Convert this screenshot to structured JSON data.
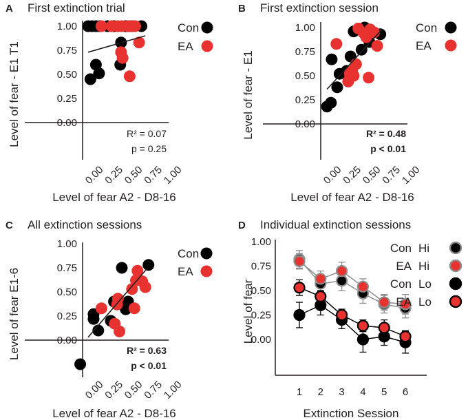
{
  "colors": {
    "con": "#000000",
    "ea": "#e8322f",
    "hi_outline": "#8c8c8c",
    "axis": "#231f20"
  },
  "chart_data": [
    {
      "panel": "A",
      "type": "scatter",
      "title": "First extinction trial",
      "xlabel": "Level of fear A2 - D8-16",
      "ylabel": "Level of fear - E1 T1",
      "xlim": [
        0,
        1
      ],
      "ylim": [
        -0.35,
        1.05
      ],
      "xticks": [
        "0.00",
        "0.25",
        "0.50",
        "0.75",
        "1.00"
      ],
      "yticks": [
        "0.00",
        "0.25",
        "0.50",
        "0.75",
        "1.00"
      ],
      "legend": [
        {
          "label": "Con",
          "series": "Con"
        },
        {
          "label": "EA",
          "series": "EA"
        }
      ],
      "stats": [
        "R² = 0.07",
        "p = 0.25"
      ],
      "stats_bold": false,
      "fit": {
        "x": [
          0.07,
          0.8
        ],
        "y": [
          0.73,
          0.9
        ]
      },
      "series": [
        {
          "name": "Con",
          "points": [
            [
              0.07,
              1.0
            ],
            [
              0.12,
              1.0
            ],
            [
              0.17,
              1.0
            ],
            [
              0.22,
              1.0
            ],
            [
              0.32,
              1.0
            ],
            [
              0.4,
              1.0
            ],
            [
              0.55,
              1.0
            ],
            [
              0.58,
              1.0
            ],
            [
              0.63,
              1.0
            ],
            [
              0.75,
              1.0
            ],
            [
              0.1,
              0.45
            ],
            [
              0.17,
              0.6
            ],
            [
              0.21,
              0.51
            ],
            [
              0.48,
              0.6
            ],
            [
              0.49,
              0.83
            ]
          ]
        },
        {
          "name": "EA",
          "points": [
            [
              0.24,
              1.0
            ],
            [
              0.37,
              1.0
            ],
            [
              0.45,
              1.0
            ],
            [
              0.5,
              1.0
            ],
            [
              0.58,
              1.0
            ],
            [
              0.62,
              1.0
            ],
            [
              0.67,
              1.0
            ],
            [
              0.72,
              0.83
            ],
            [
              0.49,
              0.73
            ],
            [
              0.51,
              0.67
            ],
            [
              0.6,
              0.48
            ]
          ]
        }
      ]
    },
    {
      "panel": "B",
      "type": "scatter",
      "title": "First extinction session",
      "xlabel": "Level of fear A2 - D8-16",
      "ylabel": "Level of fear - E1",
      "xlim": [
        0,
        1
      ],
      "ylim": [
        -0.35,
        1.05
      ],
      "xticks": [
        "0.00",
        "0.25",
        "0.50",
        "0.75",
        "1.00"
      ],
      "yticks": [
        "0.00",
        "0.25",
        "0.50",
        "0.75",
        "1.00"
      ],
      "legend": [
        {
          "label": "Con",
          "series": "Con"
        },
        {
          "label": "EA",
          "series": "EA"
        }
      ],
      "stats": [
        "R² = 0.48",
        "p < 0.01"
      ],
      "stats_bold": true,
      "fit": {
        "x": [
          0.08,
          0.78
        ],
        "y": [
          0.36,
          0.98
        ]
      },
      "series": [
        {
          "name": "Con",
          "points": [
            [
              0.08,
              0.18
            ],
            [
              0.13,
              0.22
            ],
            [
              0.14,
              0.67
            ],
            [
              0.21,
              0.38
            ],
            [
              0.24,
              0.52
            ],
            [
              0.33,
              0.55
            ],
            [
              0.38,
              0.7
            ],
            [
              0.42,
              0.96
            ],
            [
              0.52,
              0.77
            ],
            [
              0.56,
              1.0
            ],
            [
              0.62,
              0.85
            ],
            [
              0.76,
              0.93
            ]
          ]
        },
        {
          "name": "EA",
          "points": [
            [
              0.2,
              0.83
            ],
            [
              0.35,
              0.44
            ],
            [
              0.37,
              0.52
            ],
            [
              0.4,
              0.55
            ],
            [
              0.42,
              0.5
            ],
            [
              0.45,
              0.62
            ],
            [
              0.48,
              0.99
            ],
            [
              0.55,
              0.94
            ],
            [
              0.58,
              0.9
            ],
            [
              0.61,
              0.48
            ],
            [
              0.63,
              0.98
            ],
            [
              0.68,
              0.95
            ],
            [
              0.72,
              0.81
            ]
          ]
        }
      ]
    },
    {
      "panel": "C",
      "type": "scatter",
      "title": "All extinction sessions",
      "xlabel": "Level of fear A2 - D8-16",
      "ylabel": "Level of fear E1-6",
      "xlim": [
        0,
        1
      ],
      "ylim": [
        -0.35,
        1.05
      ],
      "xticks": [
        "0.00",
        "0.25",
        "0.50",
        "0.75",
        "1.00"
      ],
      "yticks": [
        "0.00",
        "0.25",
        "0.50",
        "0.75",
        "1.00"
      ],
      "legend": [
        {
          "label": "Con",
          "series": "Con"
        },
        {
          "label": "EA",
          "series": "EA"
        }
      ],
      "stats": [
        "R² = 0.63",
        "p < 0.01"
      ],
      "stats_bold": true,
      "fit": {
        "x": [
          0.07,
          0.83
        ],
        "y": [
          0.03,
          0.75
        ]
      },
      "series": [
        {
          "name": "Con",
          "points": [
            [
              -0.03,
              -0.25
            ],
            [
              0.14,
              0.22
            ],
            [
              0.14,
              0.27
            ],
            [
              0.2,
              0.1
            ],
            [
              0.36,
              0.2
            ],
            [
              0.4,
              0.4
            ],
            [
              0.5,
              0.75
            ],
            [
              0.55,
              0.32
            ],
            [
              0.58,
              0.4
            ],
            [
              0.84,
              0.78
            ]
          ]
        },
        {
          "name": "EA",
          "points": [
            [
              0.24,
              0.33
            ],
            [
              0.41,
              0.17
            ],
            [
              0.44,
              0.37
            ],
            [
              0.45,
              0.43
            ],
            [
              0.47,
              0.09
            ],
            [
              0.63,
              0.53
            ],
            [
              0.66,
              0.33
            ],
            [
              0.68,
              0.62
            ],
            [
              0.7,
              0.72
            ],
            [
              0.76,
              0.61
            ],
            [
              0.8,
              0.55
            ]
          ]
        }
      ]
    },
    {
      "panel": "D",
      "type": "line",
      "title": "Individual extinction sessions",
      "xlabel": "Extinction Session",
      "ylabel": "Level of fear",
      "x": [
        1,
        2,
        3,
        4,
        5,
        6
      ],
      "xlim": [
        0.3,
        6.5
      ],
      "ylim": [
        -0.3,
        1.05
      ],
      "xticks": [
        "1",
        "2",
        "3",
        "4",
        "5",
        "6"
      ],
      "yticks": [
        "0.00",
        "0.25",
        "0.50",
        "0.75",
        "1.00"
      ],
      "legend": [
        {
          "label": "Con",
          "group": "Hi",
          "series": "Con Hi"
        },
        {
          "label": "EA",
          "group": "Hi",
          "series": "EA Hi"
        },
        {
          "label": "Con",
          "group": "Lo",
          "series": "Con Lo"
        },
        {
          "label": "EA",
          "group": "Lo",
          "series": "EA Lo"
        }
      ],
      "series": [
        {
          "name": "Con Hi",
          "values": [
            0.82,
            0.57,
            0.6,
            0.47,
            0.36,
            0.32
          ],
          "err": [
            0.09,
            0.08,
            0.1,
            0.1,
            0.09,
            0.1
          ]
        },
        {
          "name": "EA Hi",
          "values": [
            0.8,
            0.62,
            0.7,
            0.54,
            0.38,
            0.36
          ],
          "err": [
            0.08,
            0.08,
            0.09,
            0.08,
            0.08,
            0.1
          ]
        },
        {
          "name": "Con Lo",
          "values": [
            0.25,
            0.35,
            0.2,
            0.0,
            0.03,
            -0.03
          ],
          "err": [
            0.13,
            0.1,
            0.09,
            0.13,
            0.09,
            0.11
          ]
        },
        {
          "name": "EA Lo",
          "values": [
            0.53,
            0.44,
            0.25,
            0.14,
            0.12,
            0.03
          ],
          "err": [
            0.08,
            0.06,
            0.06,
            0.06,
            0.08,
            0.06
          ]
        }
      ]
    }
  ]
}
